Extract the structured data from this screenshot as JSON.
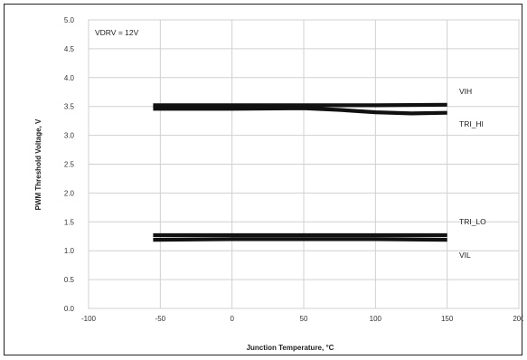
{
  "chart_data": {
    "type": "line",
    "title": "",
    "annotation": "VDRV = 12V",
    "xlabel": "Junction Temperature, °C",
    "ylabel": "PWM Threshold Voltage, V",
    "xlim": [
      -100,
      200
    ],
    "ylim": [
      0.0,
      5.0
    ],
    "xticks": [
      -100,
      -50,
      0,
      50,
      100,
      150,
      200
    ],
    "yticks": [
      "0.0",
      "0.5",
      "1.0",
      "1.5",
      "2.0",
      "2.5",
      "3.0",
      "3.5",
      "4.0",
      "4.5",
      "5.0"
    ],
    "grid": true,
    "series": [
      {
        "name": "VIH",
        "x": [
          -55,
          0,
          50,
          100,
          150
        ],
        "y": [
          3.52,
          3.52,
          3.52,
          3.52,
          3.53
        ]
      },
      {
        "name": "TRI_HI",
        "x": [
          -55,
          0,
          50,
          75,
          100,
          125,
          150
        ],
        "y": [
          3.46,
          3.46,
          3.47,
          3.44,
          3.4,
          3.38,
          3.39
        ]
      },
      {
        "name": "TRI_LO",
        "x": [
          -55,
          0,
          50,
          100,
          150
        ],
        "y": [
          1.27,
          1.27,
          1.27,
          1.27,
          1.27
        ]
      },
      {
        "name": "VIL",
        "x": [
          -55,
          0,
          50,
          100,
          150
        ],
        "y": [
          1.19,
          1.2,
          1.2,
          1.2,
          1.19
        ]
      }
    ]
  }
}
